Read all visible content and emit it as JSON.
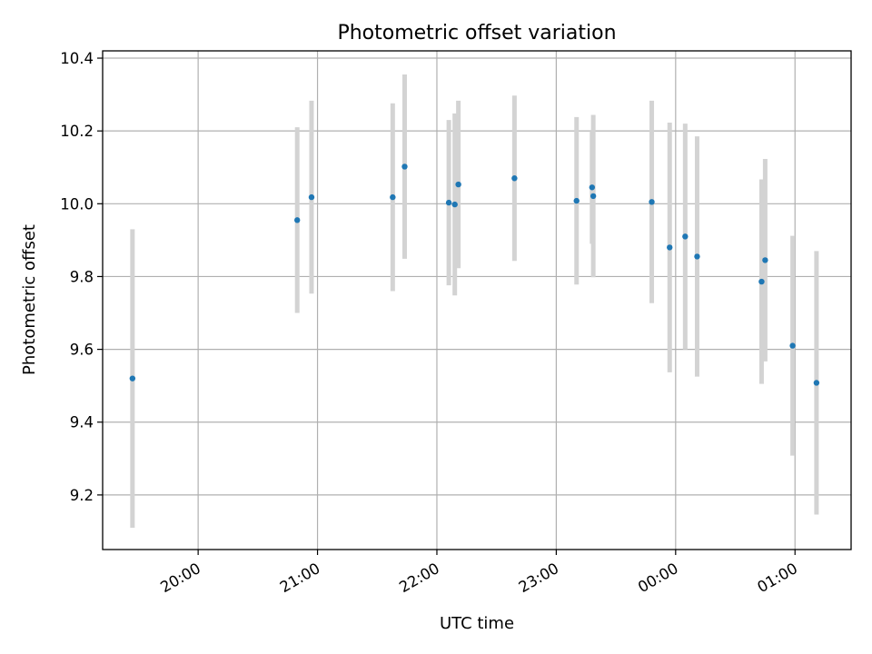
{
  "chart_data": {
    "type": "scatter",
    "title": "Photometric offset variation",
    "xlabel": "UTC time",
    "ylabel": "Photometric offset",
    "x_unit": "hours",
    "x_ticks": [
      {
        "value": 20,
        "label": "20:00"
      },
      {
        "value": 21,
        "label": "21:00"
      },
      {
        "value": 22,
        "label": "22:00"
      },
      {
        "value": 23,
        "label": "23:00"
      },
      {
        "value": 24,
        "label": "00:00"
      },
      {
        "value": 25,
        "label": "01:00"
      }
    ],
    "xlim": [
      19.2,
      25.47
    ],
    "ylim": [
      9.05,
      10.42
    ],
    "y_ticks": [
      9.2,
      9.4,
      9.6,
      9.8,
      10.0,
      10.2,
      10.4
    ],
    "grid": true,
    "point_color": "#1f77b4",
    "errorbar_color": "#d3d3d3",
    "points": [
      {
        "x": 19.45,
        "y": 9.52,
        "err": 0.41
      },
      {
        "x": 20.83,
        "y": 9.955,
        "err": 0.255
      },
      {
        "x": 20.95,
        "y": 10.018,
        "err": 0.265
      },
      {
        "x": 21.63,
        "y": 10.018,
        "err": 0.258
      },
      {
        "x": 21.73,
        "y": 10.102,
        "err": 0.253
      },
      {
        "x": 22.1,
        "y": 10.003,
        "err": 0.227
      },
      {
        "x": 22.15,
        "y": 9.998,
        "err": 0.25
      },
      {
        "x": 22.18,
        "y": 10.053,
        "err": 0.23
      },
      {
        "x": 22.65,
        "y": 10.07,
        "err": 0.227
      },
      {
        "x": 23.17,
        "y": 10.008,
        "err": 0.23
      },
      {
        "x": 23.3,
        "y": 10.045,
        "err": 0.155
      },
      {
        "x": 23.31,
        "y": 10.021,
        "err": 0.223
      },
      {
        "x": 23.8,
        "y": 10.005,
        "err": 0.278
      },
      {
        "x": 23.95,
        "y": 9.88,
        "err": 0.343
      },
      {
        "x": 24.08,
        "y": 9.91,
        "err": 0.31
      },
      {
        "x": 24.18,
        "y": 9.855,
        "err": 0.33
      },
      {
        "x": 24.72,
        "y": 9.786,
        "err": 0.281
      },
      {
        "x": 24.75,
        "y": 9.845,
        "err": 0.278
      },
      {
        "x": 24.98,
        "y": 9.61,
        "err": 0.302
      },
      {
        "x": 25.18,
        "y": 9.508,
        "err": 0.362
      }
    ]
  }
}
